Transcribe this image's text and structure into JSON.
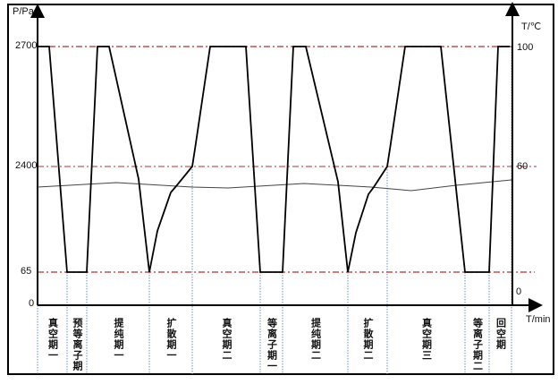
{
  "chart_data": {
    "type": "line",
    "ylabel_left": "P/Pa",
    "ylabel_right": "T/℃",
    "xlabel": "T/min",
    "left_ticks": [
      "2700",
      "2400",
      "65",
      "0"
    ],
    "right_ticks": [
      "100",
      "60",
      "0"
    ],
    "reference_lines": {
      "pressure_pa": [
        2700,
        2400,
        65
      ],
      "color": "#c0392b"
    },
    "phases": [
      "真空期一",
      "预等离子期",
      "提纯期一",
      "扩散期一",
      "真空期二",
      "等离子期一",
      "提纯期二",
      "扩散期二",
      "真空期三",
      "等离子期二",
      "回空期"
    ],
    "series": [
      {
        "role": "pressure",
        "color": "#000000"
      },
      {
        "role": "temperature",
        "color": "#444444"
      }
    ],
    "grid": false
  }
}
